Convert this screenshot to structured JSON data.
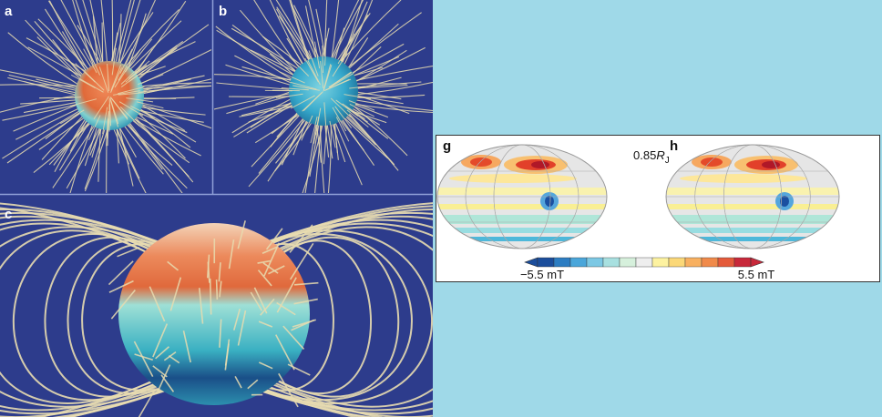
{
  "panel_labels": [
    "a",
    "b",
    "c",
    "g",
    "h"
  ],
  "radius_label": {
    "value": "0.85",
    "symbol": "R",
    "subscript": "J"
  },
  "colorbar": {
    "min_label": "−5.5 mT",
    "max_label": "5.5 mT"
  }
}
